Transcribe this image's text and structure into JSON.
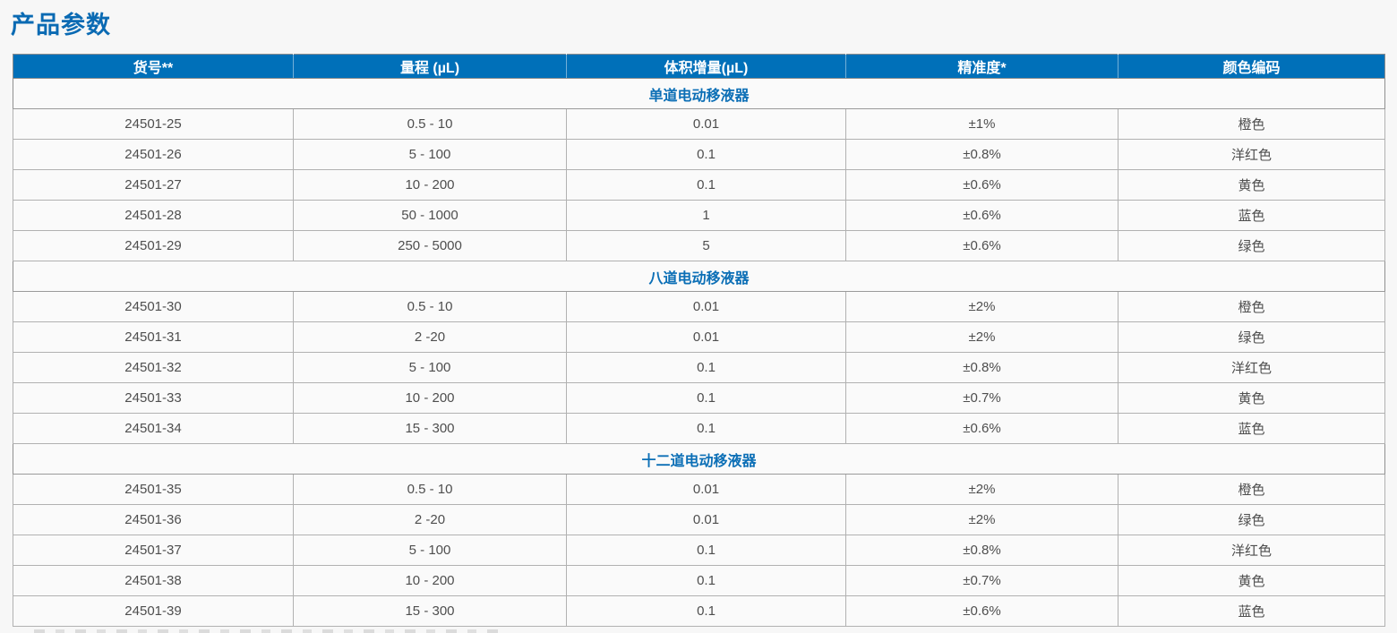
{
  "page": {
    "title": "产品参数"
  },
  "colors": {
    "header_bg": "#0070b9",
    "title_text": "#0a6ab3",
    "section_text": "#0c6fb6",
    "cell_text": "#4e4e4e"
  },
  "table": {
    "columns": [
      "货号**",
      "量程 (µL)",
      "体积增量(µL)",
      "精准度*",
      "颜色编码"
    ],
    "sections": [
      {
        "name": "单道电动移液器",
        "rows": [
          [
            "24501-25",
            "0.5 - 10",
            "0.01",
            "±1%",
            "橙色"
          ],
          [
            "24501-26",
            "5 - 100",
            "0.1",
            "±0.8%",
            "洋红色"
          ],
          [
            "24501-27",
            "10 - 200",
            "0.1",
            "±0.6%",
            "黄色"
          ],
          [
            "24501-28",
            "50 - 1000",
            "1",
            "±0.6%",
            "蓝色"
          ],
          [
            "24501-29",
            "250 - 5000",
            "5",
            "±0.6%",
            "绿色"
          ]
        ]
      },
      {
        "name": "八道电动移液器",
        "rows": [
          [
            "24501-30",
            "0.5 - 10",
            "0.01",
            "±2%",
            "橙色"
          ],
          [
            "24501-31",
            "2 -20",
            "0.01",
            "±2%",
            "绿色"
          ],
          [
            "24501-32",
            "5 - 100",
            "0.1",
            "±0.8%",
            "洋红色"
          ],
          [
            "24501-33",
            "10 - 200",
            "0.1",
            "±0.7%",
            "黄色"
          ],
          [
            "24501-34",
            "15 - 300",
            "0.1",
            "±0.6%",
            "蓝色"
          ]
        ]
      },
      {
        "name": "十二道电动移液器",
        "rows": [
          [
            "24501-35",
            "0.5 - 10",
            "0.01",
            "±2%",
            "橙色"
          ],
          [
            "24501-36",
            "2 -20",
            "0.01",
            "±2%",
            "绿色"
          ],
          [
            "24501-37",
            "5 - 100",
            "0.1",
            "±0.8%",
            "洋红色"
          ],
          [
            "24501-38",
            "10 - 200",
            "0.1",
            "±0.7%",
            "黄色"
          ],
          [
            "24501-39",
            "15 - 300",
            "0.1",
            "±0.6%",
            "蓝色"
          ]
        ]
      }
    ]
  }
}
